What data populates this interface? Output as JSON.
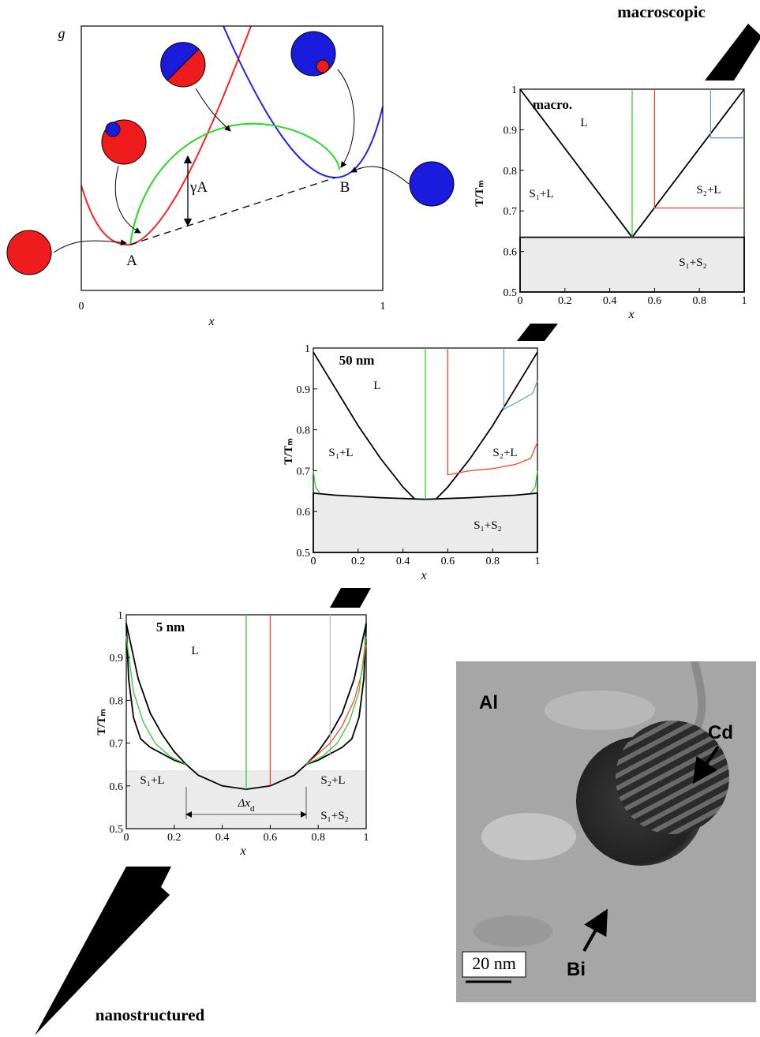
{
  "chart_data": [
    {
      "type": "schematic",
      "ylabel": "g",
      "xlabel": "x",
      "xlim": [
        0,
        1
      ],
      "xticks": [
        0,
        1
      ],
      "annotations": [
        "A",
        "B",
        "γA"
      ]
    },
    {
      "type": "line",
      "title": "macro.",
      "xlabel": "x",
      "ylabel": "T/Tₘ",
      "xlim": [
        0,
        1
      ],
      "ylim": [
        0.5,
        1
      ],
      "xticks": [
        0,
        0.2,
        0.4,
        0.6,
        0.8,
        1
      ],
      "yticks": [
        0.5,
        0.6,
        0.7,
        0.8,
        0.9,
        1
      ],
      "regions": [
        "L",
        "S₁+L",
        "S₂+L",
        "S₁+S₂"
      ],
      "series": [
        {
          "color": "#000000",
          "fill": "#ebebeb",
          "x": [
            0,
            1
          ],
          "values": [
            0.635,
            0.635
          ]
        },
        {
          "color": "#000000",
          "x": [
            0,
            0.5,
            1
          ],
          "values": [
            1,
            0.635,
            1
          ]
        },
        {
          "color": "#33cc33",
          "x": [
            0.5,
            0.5
          ],
          "values": [
            0.635,
            1
          ]
        },
        {
          "color": "#ff4422",
          "x": [
            0.6,
            0.6,
            1
          ],
          "values": [
            1,
            0.707,
            0.707
          ]
        },
        {
          "color": "#6f9fcc",
          "x": [
            0.85,
            0.85,
            1
          ],
          "values": [
            1,
            0.88,
            0.88
          ]
        }
      ]
    },
    {
      "type": "line",
      "title": "50 nm",
      "xlabel": "x",
      "ylabel": "T/Tₘ",
      "xlim": [
        0,
        1
      ],
      "ylim": [
        0.5,
        1
      ],
      "xticks": [
        0,
        0.2,
        0.4,
        0.6,
        0.8,
        1
      ],
      "yticks": [
        0.5,
        0.6,
        0.7,
        0.8,
        0.9,
        1
      ],
      "regions": [
        "L",
        "S₁+L",
        "S₂+L",
        "S₁+S₂"
      ],
      "series": [
        {
          "color": "#000000",
          "fill": "#ebebeb",
          "x": [
            0,
            0.1,
            0.3,
            0.5,
            0.7,
            0.9,
            1
          ],
          "values": [
            0.645,
            0.64,
            0.634,
            0.63,
            0.634,
            0.64,
            0.645
          ]
        },
        {
          "color": "#000000",
          "x": [
            0,
            0.1,
            0.2,
            0.3,
            0.4,
            0.45
          ],
          "values": [
            0.99,
            0.9,
            0.81,
            0.73,
            0.66,
            0.632
          ]
        },
        {
          "color": "#000000",
          "x": [
            0.55,
            0.6,
            0.7,
            0.8,
            0.9,
            1
          ],
          "values": [
            0.632,
            0.66,
            0.73,
            0.81,
            0.9,
            0.99
          ]
        },
        {
          "color": "#33cc33",
          "x": [
            0.5,
            0.5
          ],
          "values": [
            0.63,
            1
          ]
        },
        {
          "color": "#ff4422",
          "x": [
            0.6,
            0.6,
            0.7,
            0.8,
            0.9,
            0.97,
            1
          ],
          "values": [
            1,
            0.69,
            0.7,
            0.705,
            0.715,
            0.73,
            0.77
          ]
        },
        {
          "color": "#6f9fcc",
          "x": [
            0.85,
            0.85,
            0.9,
            0.95,
            0.98,
            1
          ],
          "values": [
            1,
            0.85,
            0.865,
            0.88,
            0.89,
            0.92
          ]
        },
        {
          "color": "#33cc33",
          "x": [
            0,
            0.01,
            0.03,
            0.5,
            0.97,
            0.99,
            1
          ],
          "values": [
            0.7,
            0.66,
            0.645,
            null,
            0.645,
            0.66,
            0.7
          ]
        }
      ]
    },
    {
      "type": "line",
      "title": "5 nm",
      "xlabel": "x",
      "ylabel": "T/Tₘ",
      "xlim": [
        0,
        1
      ],
      "ylim": [
        0.5,
        1
      ],
      "xticks": [
        0,
        0.2,
        0.4,
        0.6,
        0.8,
        1
      ],
      "yticks": [
        0.5,
        0.6,
        0.7,
        0.8,
        0.9,
        1
      ],
      "regions": [
        "L",
        "S₁+L",
        "S₂+L",
        "S₁+S₂"
      ],
      "span": [
        0.25,
        0.75
      ],
      "span_label": {
        "text": "Δx",
        "sub": "d"
      },
      "series": [
        {
          "color": "#e6e6e6",
          "fill": "#ebebeb",
          "x": [
            0,
            1
          ],
          "values": [
            0.635,
            0.635
          ]
        },
        {
          "color": "#000000",
          "x": [
            0,
            0.01,
            0.03,
            0.06,
            0.1,
            0.15,
            0.2,
            0.25,
            0.3,
            0.4,
            0.5,
            0.6,
            0.7,
            0.75,
            0.8,
            0.85,
            0.9,
            0.94,
            0.97,
            0.99,
            1
          ],
          "values": [
            0.98,
            0.85,
            0.76,
            0.71,
            0.69,
            0.675,
            0.66,
            0.65,
            0.625,
            0.6,
            0.592,
            0.6,
            0.625,
            0.65,
            0.66,
            0.675,
            0.69,
            0.71,
            0.76,
            0.85,
            0.98
          ]
        },
        {
          "color": "#000000",
          "x": [
            0,
            0.05,
            0.1,
            0.15,
            0.2,
            0.25,
            0.5,
            0.75,
            0.8,
            0.85,
            0.9,
            0.95,
            1
          ],
          "values": [
            0.98,
            0.85,
            0.77,
            0.72,
            0.68,
            0.65,
            null,
            0.65,
            0.68,
            0.72,
            0.77,
            0.85,
            0.98
          ]
        },
        {
          "color": "#33cc33",
          "x": [
            0.5,
            0.5
          ],
          "values": [
            0.592,
            1
          ]
        },
        {
          "color": "#ff4422",
          "x": [
            0.6,
            0.6
          ],
          "values": [
            0.6,
            1
          ]
        },
        {
          "color": "#bbbbbb",
          "x": [
            0.85,
            0.85
          ],
          "values": [
            0.675,
            1
          ]
        },
        {
          "color": "#ff4422",
          "x": [
            0.75,
            0.85,
            0.9,
            0.95,
            0.98,
            1
          ],
          "values": [
            0.65,
            0.7,
            0.74,
            0.8,
            0.86,
            0.93
          ]
        },
        {
          "color": "#33cc33",
          "x": [
            0,
            0.03,
            0.07,
            0.12,
            0.18,
            0.25,
            0.5,
            0.75,
            0.82,
            0.88,
            0.93,
            0.97,
            1
          ],
          "values": [
            0.95,
            0.82,
            0.75,
            0.7,
            0.67,
            0.65,
            null,
            0.65,
            0.67,
            0.7,
            0.75,
            0.82,
            0.95
          ]
        }
      ]
    }
  ],
  "captions": {
    "top": "macroscopic",
    "bottom": "nanostructured"
  },
  "micrograph": {
    "labels": [
      "Al",
      "Cd",
      "Bi"
    ],
    "scale_bar": "20 nm"
  }
}
